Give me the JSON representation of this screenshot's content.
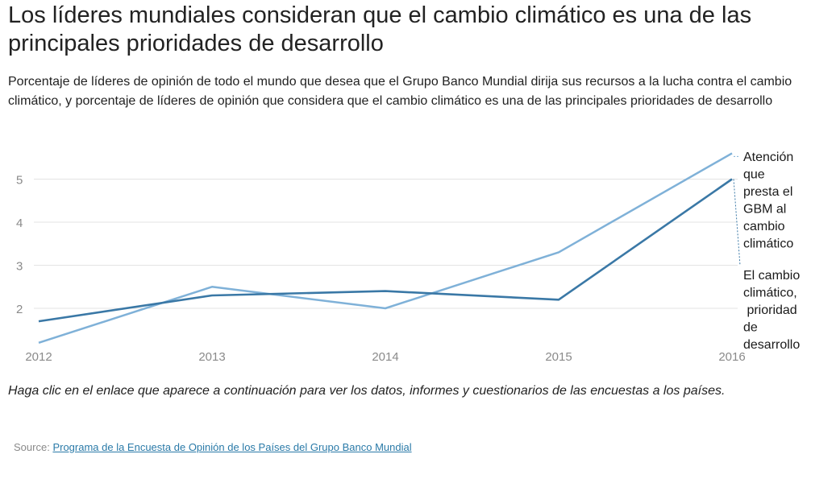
{
  "title": "Los líderes mundiales consideran que el cambio climático es una de las principales prioridades de desarrollo",
  "subtitle": "Porcentaje de líderes de opinión de todo el mundo que desea que el Grupo Banco Mundial dirija sus recursos a la lucha contra el cambio climático, y porcentaje de líderes de opinión que considera que el cambio climático es una de las principales prioridades de desarrollo",
  "note": "Haga clic en el enlace que aparece a continuación para ver los datos, informes y cuestionarios de las encuestas a los países.",
  "source": {
    "label": "Source:",
    "link_text": "Programa de la Encuesta de Opinión de los Países del Grupo Banco Mundial"
  },
  "colors": {
    "light_series": "#7fb1d8",
    "dark_series": "#3a78a6",
    "grid": "#e3e3e3",
    "tick": "#8a8a8a"
  },
  "chart_data": {
    "type": "line",
    "x": [
      "2012",
      "2013",
      "2014",
      "2015",
      "2016"
    ],
    "y_ticks": [
      2,
      3,
      4,
      5
    ],
    "ylim": [
      1.1,
      5.7
    ],
    "grid": true,
    "series": [
      {
        "name": "Atención que presta el GBM al cambio climático",
        "label_lines": [
          "Atención",
          "que",
          "presta el",
          "GBM al",
          "cambio",
          "climático"
        ],
        "color": "#7fb1d8",
        "values": [
          1.2,
          2.5,
          2.0,
          3.3,
          5.6
        ]
      },
      {
        "name": "El cambio climático, prioridad de desarrollo",
        "label_lines": [
          "El cambio",
          "climático,",
          " prioridad",
          "de",
          "desarrollo"
        ],
        "color": "#3a78a6",
        "values": [
          1.7,
          2.3,
          2.4,
          2.2,
          5.0
        ]
      }
    ]
  }
}
